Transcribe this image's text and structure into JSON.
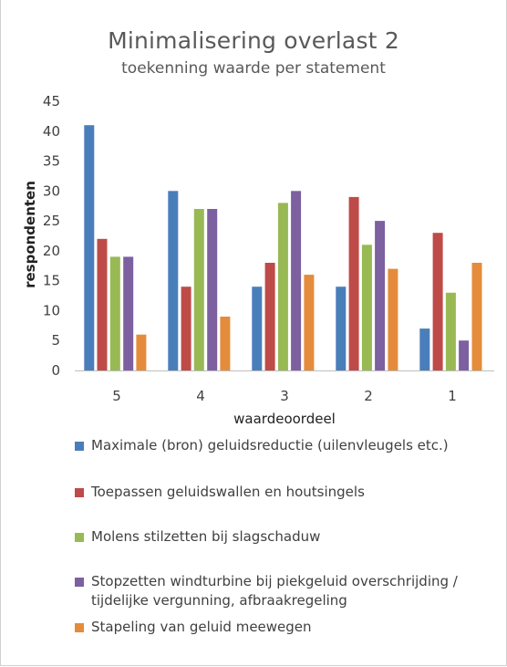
{
  "chart_data": {
    "type": "bar",
    "title": "Minimalisering overlast 2",
    "subtitle": "toekenning waarde per statement",
    "xlabel": "waardeoordeel",
    "ylabel": "respondenten",
    "ylim": [
      0,
      45
    ],
    "yticks": [
      0,
      5,
      10,
      15,
      20,
      25,
      30,
      35,
      40,
      45
    ],
    "grid": false,
    "legend_position": "bottom",
    "categories": [
      "5",
      "4",
      "3",
      "2",
      "1"
    ],
    "series": [
      {
        "name": "Maximale (bron) geluidsreductie (uilenvleugels etc.)",
        "color": "#4a7ebb",
        "values": [
          41,
          30,
          14,
          14,
          7
        ]
      },
      {
        "name": "Toepassen geluidswallen en houtsingels",
        "color": "#be4b48",
        "values": [
          22,
          14,
          18,
          29,
          23
        ]
      },
      {
        "name": "Molens stilzetten bij slagschaduw",
        "color": "#98b954",
        "values": [
          19,
          27,
          28,
          21,
          13
        ]
      },
      {
        "name": "Stopzetten windturbine bij piekgeluid overschrijding / tijdelijke vergunning, afbraakregeling",
        "color": "#7d60a0",
        "values": [
          19,
          27,
          30,
          25,
          5
        ]
      },
      {
        "name": "Stapeling van geluid meewegen",
        "color": "#e48c3c",
        "values": [
          6,
          9,
          16,
          17,
          18
        ]
      }
    ]
  }
}
